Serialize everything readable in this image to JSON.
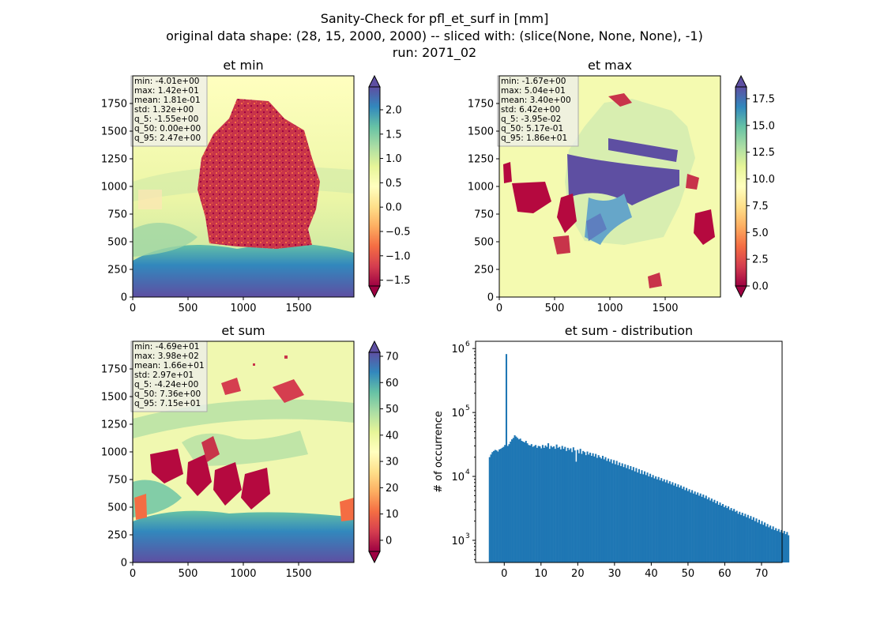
{
  "figure": {
    "title_lines": [
      "Sanity-Check for pfl_et_surf in [mm]",
      "original data shape: (28, 15, 2000, 2000) -- sliced with: (slice(None, None, None), -1)",
      "run: 2071_02"
    ]
  },
  "chart_data": [
    {
      "type": "heatmap",
      "title": "et min",
      "xticks": [
        "0",
        "500",
        "1000",
        "1500"
      ],
      "yticks": [
        "0",
        "250",
        "500",
        "750",
        "1000",
        "1250",
        "1500",
        "1750"
      ],
      "xlim": [
        0,
        2000
      ],
      "ylim": [
        0,
        2000
      ],
      "colormap": "Spectral",
      "colorbar": {
        "vmin": -1.62,
        "vmax": 2.47,
        "ticks": [
          "−1.5",
          "−1.0",
          "−0.5",
          "0.0",
          "0.5",
          "1.0",
          "1.5",
          "2.0"
        ],
        "tick_values": [
          -1.5,
          -1.0,
          -0.5,
          0.0,
          0.5,
          1.0,
          1.5,
          2.0
        ],
        "extend": "both"
      },
      "stats": [
        "min: -4.01e+00",
        "max: 1.42e+01",
        "mean: 1.81e-01",
        "std: 1.32e+00",
        "q_5: -1.55e+00",
        "q_50: 0.00e+00",
        "q_95: 2.47e+00"
      ]
    },
    {
      "type": "heatmap",
      "title": "et max",
      "xticks": [
        "0",
        "500",
        "1000",
        "1500"
      ],
      "yticks": [
        "0",
        "250",
        "500",
        "750",
        "1000",
        "1250",
        "1500",
        "1750"
      ],
      "xlim": [
        0,
        2000
      ],
      "ylim": [
        0,
        2000
      ],
      "colormap": "Spectral",
      "colorbar": {
        "vmin": 0.0,
        "vmax": 18.6,
        "ticks": [
          "0.0",
          "2.5",
          "5.0",
          "7.5",
          "10.0",
          "12.5",
          "15.0",
          "17.5"
        ],
        "tick_values": [
          0.0,
          2.5,
          5.0,
          7.5,
          10.0,
          12.5,
          15.0,
          17.5
        ],
        "extend": "both"
      },
      "stats": [
        "min: -1.67e+00",
        "max: 5.04e+01",
        "mean: 3.40e+00",
        "std: 6.42e+00",
        "q_5: -3.95e-02",
        "q_50: 5.17e-01",
        "q_95: 1.86e+01"
      ]
    },
    {
      "type": "heatmap",
      "title": "et sum",
      "xticks": [
        "0",
        "500",
        "1000",
        "1500"
      ],
      "yticks": [
        "0",
        "250",
        "500",
        "750",
        "1000",
        "1250",
        "1500",
        "1750"
      ],
      "xlim": [
        0,
        2000
      ],
      "ylim": [
        0,
        2000
      ],
      "colormap": "Spectral",
      "colorbar": {
        "vmin": -4.24,
        "vmax": 71.5,
        "ticks": [
          "0",
          "10",
          "20",
          "30",
          "40",
          "50",
          "60",
          "70"
        ],
        "tick_values": [
          0,
          10,
          20,
          30,
          40,
          50,
          60,
          70
        ],
        "extend": "both"
      },
      "stats": [
        "min: -4.69e+01",
        "max: 3.98e+02",
        "mean: 1.66e+01",
        "std: 2.97e+01",
        "q_5: -4.24e+00",
        "q_50: 7.36e+00",
        "q_95: 7.15e+01"
      ]
    },
    {
      "type": "bar",
      "title": "et sum - distribution",
      "xlabel": "",
      "ylabel": "# of occurrence",
      "yscale": "log",
      "xlim": [
        -7.8,
        75.6
      ],
      "ylim": [
        450,
        1300000
      ],
      "xticks": [
        "0",
        "10",
        "20",
        "30",
        "40",
        "50",
        "60",
        "70"
      ],
      "xtick_values": [
        0,
        10,
        20,
        30,
        40,
        50,
        60,
        70
      ],
      "yticks": [
        "10",
        "10",
        "10"
      ],
      "ytick_exponents": [
        "3",
        "4",
        "5",
        "6"
      ],
      "ytick_values": [
        1000,
        10000,
        100000,
        1000000
      ],
      "color": "#1f77b4",
      "bin_start": -4.2,
      "bin_width": 0.38,
      "values": [
        20000,
        22000,
        24000,
        25000,
        26000,
        25500,
        24500,
        26500,
        27000,
        28000,
        29000,
        31000,
        820000,
        30000,
        32000,
        35000,
        38000,
        40000,
        44000,
        42000,
        40000,
        38000,
        39000,
        36000,
        35000,
        34000,
        36000,
        33000,
        31000,
        30500,
        32000,
        29000,
        30000,
        31000,
        28000,
        30000,
        29500,
        27500,
        31000,
        28000,
        30500,
        29000,
        33000,
        27000,
        30000,
        28500,
        29500,
        27000,
        31500,
        28000,
        29000,
        26500,
        30000,
        27000,
        29000,
        25000,
        28000,
        26000,
        27500,
        24000,
        28500,
        25500,
        17000,
        26000,
        23000,
        27000,
        22500,
        25000,
        24000,
        21500,
        24500,
        22000,
        23500,
        21000,
        23000,
        20500,
        22500,
        19500,
        21500,
        20000,
        19000,
        21000,
        18500,
        20000,
        17500,
        19000,
        17000,
        18500,
        16000,
        18000,
        15500,
        17500,
        15000,
        16500,
        14500,
        16000,
        14000,
        15500,
        13500,
        15000,
        13000,
        14500,
        12500,
        14000,
        12000,
        13500,
        11500,
        13000,
        11000,
        12500,
        10800,
        12000,
        10500,
        11500,
        10000,
        11000,
        9700,
        10500,
        9300,
        10000,
        9000,
        9800,
        8700,
        9400,
        8400,
        9000,
        8100,
        8800,
        7800,
        8400,
        7500,
        8100,
        7200,
        7800,
        6900,
        7500,
        6700,
        7200,
        6400,
        6900,
        6100,
        6600,
        5900,
        6300,
        5600,
        6100,
        5400,
        5800,
        5200,
        5600,
        5000,
        5400,
        4800,
        5200,
        4600,
        5000,
        4400,
        4700,
        4200,
        4500,
        4000,
        4300,
        3800,
        4100,
        3600,
        3900,
        3500,
        3700,
        3300,
        3500,
        3200,
        3400,
        3000,
        3200,
        2900,
        3100,
        2800,
        2900,
        2600,
        2800,
        2500,
        2700,
        2400,
        2600,
        2300,
        2500,
        2200,
        2400,
        2100,
        2300,
        2000,
        2200,
        1900,
        2100,
        1800,
        2000,
        1750,
        1900,
        1650,
        1800,
        1600,
        1700,
        1500,
        1650,
        1450,
        1550,
        1400,
        1500,
        1350,
        1450,
        1300,
        1400,
        1250,
        1350,
        1200
      ]
    }
  ]
}
